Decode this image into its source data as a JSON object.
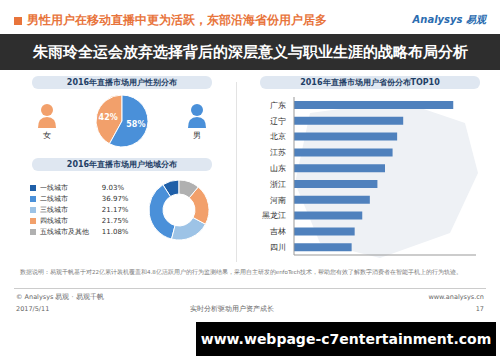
{
  "header": {
    "title": "男性用户在移动直播中更为活跃，东部沿海省份用户居多",
    "logo": "Analysys 易观"
  },
  "banner": "朱雨玲全运会放弃选择背后的深层意义与职业生涯的战略布局分析",
  "chart_data": [
    {
      "type": "pie",
      "title": "2016年直播市场用户性别分布",
      "categories": [
        "女",
        "男"
      ],
      "values": [
        42,
        58
      ],
      "value_labels": [
        "42%",
        "58%"
      ],
      "colors": [
        "#f2a06b",
        "#4a90d9"
      ],
      "data_labels": true
    },
    {
      "type": "donut",
      "title": "2016年直播市场用户地域分布",
      "categories": [
        "一线城市",
        "二线城市",
        "三线城市",
        "四线城市",
        "五线城市及其他"
      ],
      "values": [
        9.03,
        36.97,
        21.17,
        21.75,
        11.08
      ],
      "value_labels": [
        "9.03%",
        "36.97%",
        "21.17%",
        "21.75%",
        "11.08%"
      ],
      "colors": [
        "#1f5fa8",
        "#4a90d9",
        "#9dc3e6",
        "#f2a06b",
        "#b0b0b0"
      ],
      "legend": "left"
    },
    {
      "type": "bar",
      "orientation": "horizontal",
      "title": "2016年直播市场用户省份分布TOP10",
      "categories": [
        "广东",
        "辽宁",
        "北京",
        "江苏",
        "山东",
        "浙江",
        "河南",
        "黑龙江",
        "吉林",
        "四川"
      ],
      "values": [
        10.5,
        7.2,
        6.8,
        6.5,
        6.0,
        5.5,
        5.0,
        4.5,
        4.0,
        3.8
      ],
      "color": "#4f81bd",
      "xlim": [
        0,
        12
      ],
      "tick_labels": "y"
    }
  ],
  "notes": "数据说明：易观千帆基于对22亿累计装机覆盖和4.8亿活跃用户的行为监测结果，采用自主研发的enfoTech技术，帮助您有效了解数字消费者在智能手机上的行为轨迹。",
  "footer": {
    "source": "© Analysys 易观 · 易观千帆",
    "date": "2017/5/11",
    "slogan": "实时分析驱动用户资产成长",
    "site": "www.analysys.cn",
    "page": "17"
  },
  "watermark": "www.webpage-c7entertainment.com"
}
